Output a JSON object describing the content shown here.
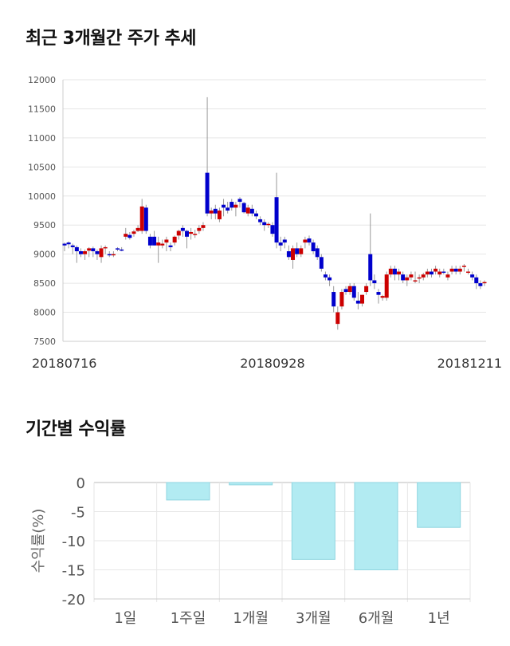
{
  "sections": {
    "price_title": "최근 3개월간 주가 추세",
    "returns_title": "기간별 수익률"
  },
  "colors": {
    "up": "#cc0000",
    "down": "#0000cc",
    "wick": "#999999",
    "bar": "#b2ebf2",
    "bar_border": "#8fd6e0",
    "grid": "#e6e6e6"
  },
  "chart_data": [
    {
      "type": "candlestick",
      "title": "최근 3개월간 주가 추세",
      "ylim": [
        7500,
        12000
      ],
      "yticks": [
        7500,
        8000,
        8500,
        9000,
        9500,
        10000,
        10500,
        11000,
        11500,
        12000
      ],
      "x_labels": [
        {
          "index": 0,
          "label": "20180716"
        },
        {
          "index": 51,
          "label": "20180928"
        },
        {
          "index": 102,
          "label": "20181211"
        }
      ],
      "candles": [
        [
          9180,
          9200,
          9050,
          9150
        ],
        [
          9200,
          9220,
          9100,
          9170
        ],
        [
          9150,
          9180,
          9000,
          9120
        ],
        [
          9120,
          9150,
          8850,
          9050
        ],
        [
          9050,
          9100,
          8950,
          9000
        ],
        [
          9000,
          9080,
          8900,
          9050
        ],
        [
          9060,
          9120,
          8950,
          9100
        ],
        [
          9100,
          9130,
          8950,
          9050
        ],
        [
          9050,
          9080,
          8900,
          9000
        ],
        [
          8950,
          9150,
          8850,
          9100
        ],
        [
          9100,
          9150,
          9000,
          9120
        ],
        [
          9000,
          9050,
          8950,
          8980
        ],
        [
          8980,
          9050,
          8950,
          9000
        ],
        [
          9100,
          9120,
          9050,
          9080
        ],
        [
          9080,
          9120,
          9050,
          9070
        ],
        [
          9300,
          9450,
          9250,
          9350
        ],
        [
          9330,
          9380,
          9250,
          9280
        ],
        [
          9350,
          9420,
          9300,
          9390
        ],
        [
          9400,
          9500,
          9380,
          9450
        ],
        [
          9400,
          9950,
          9350,
          9820
        ],
        [
          9800,
          9850,
          9350,
          9400
        ],
        [
          9300,
          9350,
          9100,
          9150
        ],
        [
          9300,
          9400,
          9150,
          9150
        ],
        [
          9150,
          9300,
          8850,
          9200
        ],
        [
          9150,
          9250,
          9100,
          9180
        ],
        [
          9200,
          9300,
          9050,
          9250
        ],
        [
          9150,
          9200,
          9050,
          9120
        ],
        [
          9200,
          9320,
          9150,
          9300
        ],
        [
          9320,
          9420,
          9250,
          9400
        ],
        [
          9450,
          9500,
          9300,
          9400
        ],
        [
          9400,
          9420,
          9100,
          9300
        ],
        [
          9350,
          9450,
          9250,
          9380
        ],
        [
          9330,
          9420,
          9280,
          9350
        ],
        [
          9400,
          9500,
          9350,
          9450
        ],
        [
          9450,
          9550,
          9400,
          9500
        ],
        [
          10400,
          11700,
          9650,
          9700
        ],
        [
          9700,
          9800,
          9600,
          9750
        ],
        [
          9780,
          9850,
          9600,
          9700
        ],
        [
          9600,
          9800,
          9550,
          9750
        ],
        [
          9850,
          9950,
          9650,
          9800
        ],
        [
          9800,
          9900,
          9700,
          9750
        ],
        [
          9900,
          9950,
          9750,
          9800
        ],
        [
          9800,
          9900,
          9650,
          9850
        ],
        [
          9950,
          9980,
          9800,
          9900
        ],
        [
          9880,
          9900,
          9700,
          9720
        ],
        [
          9700,
          9850,
          9650,
          9800
        ],
        [
          9780,
          9850,
          9650,
          9700
        ],
        [
          9700,
          9750,
          9600,
          9650
        ],
        [
          9600,
          9650,
          9500,
          9550
        ],
        [
          9550,
          9600,
          9400,
          9500
        ],
        [
          9500,
          9550,
          9450,
          9520
        ],
        [
          9500,
          9550,
          9300,
          9350
        ],
        [
          9980,
          10400,
          9100,
          9200
        ],
        [
          9200,
          9300,
          9050,
          9150
        ],
        [
          9250,
          9300,
          9100,
          9200
        ],
        [
          9050,
          9150,
          8900,
          8950
        ],
        [
          8900,
          9150,
          8750,
          9100
        ],
        [
          9100,
          9200,
          8950,
          9000
        ],
        [
          9000,
          9150,
          8950,
          9100
        ],
        [
          9200,
          9300,
          9100,
          9250
        ],
        [
          9270,
          9320,
          9150,
          9200
        ],
        [
          9200,
          9250,
          9000,
          9050
        ],
        [
          9100,
          9150,
          8900,
          8950
        ],
        [
          8950,
          9000,
          8700,
          8750
        ],
        [
          8650,
          8700,
          8550,
          8600
        ],
        [
          8600,
          8650,
          8450,
          8550
        ],
        [
          8350,
          8450,
          8000,
          8100
        ],
        [
          7800,
          8100,
          7700,
          8000
        ],
        [
          8100,
          8400,
          8050,
          8350
        ],
        [
          8400,
          8450,
          8300,
          8350
        ],
        [
          8350,
          8500,
          8300,
          8450
        ],
        [
          8450,
          8500,
          8200,
          8250
        ],
        [
          8200,
          8350,
          8050,
          8150
        ],
        [
          8150,
          8300,
          8100,
          8300
        ],
        [
          8350,
          8500,
          8300,
          8450
        ],
        [
          9000,
          9700,
          8450,
          8550
        ],
        [
          8550,
          8650,
          8400,
          8500
        ],
        [
          8350,
          8400,
          8150,
          8300
        ],
        [
          8250,
          8300,
          8200,
          8280
        ],
        [
          8250,
          8700,
          8200,
          8650
        ],
        [
          8650,
          8800,
          8600,
          8750
        ],
        [
          8750,
          8800,
          8550,
          8650
        ],
        [
          8650,
          8750,
          8550,
          8700
        ],
        [
          8650,
          8700,
          8500,
          8550
        ],
        [
          8550,
          8650,
          8450,
          8600
        ],
        [
          8600,
          8700,
          8550,
          8650
        ],
        [
          8550,
          8700,
          8500,
          8550
        ],
        [
          8600,
          8650,
          8500,
          8600
        ],
        [
          8600,
          8680,
          8550,
          8650
        ],
        [
          8650,
          8750,
          8600,
          8700
        ],
        [
          8700,
          8750,
          8600,
          8650
        ],
        [
          8700,
          8800,
          8650,
          8750
        ],
        [
          8650,
          8750,
          8600,
          8700
        ],
        [
          8700,
          8750,
          8650,
          8680
        ],
        [
          8600,
          8700,
          8550,
          8650
        ],
        [
          8700,
          8800,
          8650,
          8750
        ],
        [
          8750,
          8800,
          8650,
          8700
        ],
        [
          8700,
          8800,
          8650,
          8750
        ],
        [
          8780,
          8830,
          8700,
          8800
        ],
        [
          8700,
          8750,
          8650,
          8700
        ],
        [
          8650,
          8700,
          8550,
          8600
        ],
        [
          8600,
          8650,
          8400,
          8500
        ],
        [
          8500,
          8550,
          8400,
          8450
        ],
        [
          8500,
          8550,
          8450,
          8520
        ]
      ]
    },
    {
      "type": "bar",
      "title": "기간별 수익률",
      "ylabel": "수익률(%)",
      "categories": [
        "1일",
        "1주일",
        "1개월",
        "3개월",
        "6개월",
        "1년"
      ],
      "values": [
        0.0,
        -3.0,
        -0.4,
        -13.2,
        -15.0,
        -7.7
      ],
      "ylim": [
        -20,
        0
      ],
      "yticks": [
        0,
        -5,
        -10,
        -15,
        -20
      ]
    }
  ]
}
